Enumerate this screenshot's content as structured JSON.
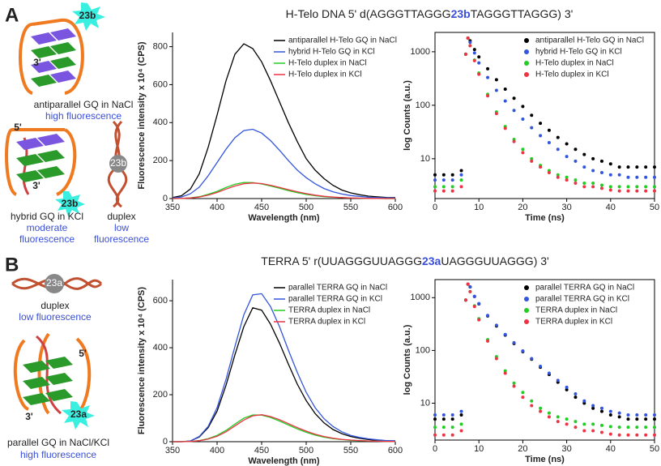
{
  "panels": [
    {
      "label": "A",
      "title": {
        "before": "H-Telo DNA 5' d(AGGGTTAGGG",
        "highlight": "23b",
        "after": "TAGGGTTAGGG) 3'"
      },
      "labels": [
        "23b",
        "3'",
        "antiparallel GQ in NaCl",
        "high fluorescence",
        "5'",
        "3'",
        "23b",
        "23b",
        "hybrid GQ in KCl",
        "moderate",
        "fluorescence",
        "duplex",
        "low",
        "fluorescence"
      ]
    },
    {
      "label": "B",
      "title": {
        "before": "TERRA 5' r(UUAGGGUUAGGG",
        "highlight": "23a",
        "after": "UAGGGUUAGGG) 3'"
      },
      "labels": [
        "23a",
        "duplex",
        "low fluorescence",
        "5'",
        "3'",
        "23a",
        "parallel GQ in NaCl/KCl",
        "high fluorescence"
      ]
    }
  ],
  "chart_data": [
    {
      "type": "line",
      "x_label": "Wavelength (nm)",
      "y_label": "Fluorescence intensity x 10⁴ (CPS)",
      "x": [
        350,
        360,
        370,
        380,
        390,
        400,
        410,
        420,
        430,
        440,
        450,
        460,
        470,
        480,
        490,
        500,
        510,
        520,
        530,
        540,
        550,
        560,
        570,
        580,
        590,
        600
      ],
      "xlim": [
        350,
        600
      ],
      "xticks": [
        350,
        400,
        450,
        500,
        550,
        600
      ],
      "ylim": [
        0,
        875
      ],
      "yticks": [
        0,
        200,
        400,
        600,
        800
      ],
      "legend": "upper right",
      "series": [
        {
          "name": "antiparallel H-Telo GQ in NaCl",
          "color": "#000000",
          "values": [
            5,
            15,
            50,
            130,
            270,
            440,
            620,
            760,
            815,
            790,
            720,
            620,
            510,
            400,
            300,
            210,
            150,
            105,
            70,
            45,
            30,
            20,
            13,
            9,
            6,
            5
          ]
        },
        {
          "name": "hybrid H-Telo GQ in KCl",
          "color": "#3355dd",
          "values": [
            3,
            8,
            25,
            60,
            120,
            190,
            260,
            320,
            358,
            365,
            345,
            305,
            255,
            200,
            150,
            110,
            78,
            53,
            36,
            24,
            16,
            11,
            7,
            5,
            4,
            3
          ]
        },
        {
          "name": "H-Telo duplex in NaCl",
          "color": "#22cc22",
          "values": [
            0,
            1,
            4,
            10,
            22,
            38,
            58,
            75,
            85,
            84,
            77,
            66,
            54,
            42,
            31,
            22,
            15,
            10,
            7,
            5,
            3,
            2,
            1,
            1,
            0,
            0
          ]
        },
        {
          "name": "H-Telo duplex in KCl",
          "color": "#ee3344",
          "values": [
            0,
            1,
            3,
            8,
            18,
            32,
            50,
            66,
            78,
            82,
            79,
            70,
            59,
            47,
            36,
            26,
            18,
            12,
            8,
            5,
            3,
            2,
            1,
            1,
            0,
            0
          ]
        }
      ]
    },
    {
      "type": "scatter",
      "log_y": true,
      "x_label": "Time (ns)",
      "y_label": "log Counts (a.u.)",
      "x": [
        0,
        2,
        4,
        6,
        7,
        7.5,
        8,
        9,
        10,
        12,
        14,
        16,
        18,
        20,
        22,
        24,
        26,
        28,
        30,
        32,
        34,
        36,
        38,
        40,
        42,
        44,
        46,
        48,
        50
      ],
      "xlim": [
        0,
        50
      ],
      "xticks": [
        0,
        10,
        20,
        30,
        40,
        50
      ],
      "ylim": [
        1.8,
        2300
      ],
      "yticks": [
        10,
        100,
        1000
      ],
      "legend": "upper right",
      "series": [
        {
          "name": "antiparallel H-Telo GQ in NaCl",
          "color": "#000000",
          "values": [
            5,
            5,
            5,
            6,
            900,
            1800,
            1600,
            1100,
            800,
            480,
            300,
            200,
            135,
            95,
            65,
            46,
            34,
            25,
            19,
            15,
            12,
            10,
            9,
            8,
            7,
            7,
            7,
            7,
            7
          ]
        },
        {
          "name": "hybrid H-Telo GQ in KCl",
          "color": "#3355dd",
          "values": [
            4,
            4,
            4,
            5,
            900,
            1800,
            1500,
            950,
            620,
            330,
            190,
            120,
            80,
            55,
            38,
            27,
            20,
            15,
            11,
            9,
            7,
            6,
            5.5,
            5,
            5,
            4.5,
            4.5,
            4.5,
            4.5
          ]
        },
        {
          "name": "H-Telo duplex in NaCl",
          "color": "#22cc22",
          "values": [
            3,
            3,
            3,
            4,
            900,
            1800,
            1300,
            700,
            400,
            160,
            75,
            40,
            23,
            15,
            10,
            7.5,
            6,
            5,
            4.5,
            4,
            3.5,
            3.5,
            3.2,
            3,
            3,
            3,
            3,
            3,
            3
          ]
        },
        {
          "name": "H-Telo duplex in KCl",
          "color": "#ee3344",
          "values": [
            2.5,
            2.5,
            2.5,
            3,
            900,
            1800,
            1300,
            680,
            380,
            150,
            70,
            37,
            21,
            13,
            9,
            7,
            5.5,
            4.5,
            4,
            3.5,
            3,
            3,
            2.8,
            2.6,
            2.5,
            2.5,
            2.5,
            2.5,
            2.5
          ]
        }
      ]
    },
    {
      "type": "line",
      "x_label": "Wavelength (nm)",
      "y_label": "Fluorescence intensity x 10⁴ (CPS)",
      "x": [
        350,
        360,
        370,
        380,
        390,
        400,
        410,
        420,
        430,
        440,
        450,
        460,
        470,
        480,
        490,
        500,
        510,
        520,
        530,
        540,
        550,
        560,
        570,
        580,
        590,
        600
      ],
      "xlim": [
        350,
        600
      ],
      "xticks": [
        350,
        400,
        450,
        500,
        550,
        600
      ],
      "ylim": [
        0,
        690
      ],
      "yticks": [
        0,
        200,
        400,
        600
      ],
      "legend": "upper right",
      "series": [
        {
          "name": "parallel TERRA GQ in NaCl",
          "color": "#000000",
          "values": [
            0,
            0,
            3,
            20,
            60,
            130,
            240,
            370,
            490,
            570,
            560,
            500,
            420,
            330,
            245,
            175,
            120,
            80,
            52,
            34,
            22,
            14,
            9,
            6,
            4,
            3
          ]
        },
        {
          "name": "parallel TERRA GQ in KCl",
          "color": "#3355dd",
          "values": [
            0,
            0,
            3,
            22,
            65,
            145,
            265,
            405,
            540,
            625,
            630,
            575,
            490,
            390,
            295,
            210,
            145,
            98,
            65,
            42,
            27,
            18,
            12,
            8,
            5,
            4
          ]
        },
        {
          "name": "TERRA duplex in NaCl",
          "color": "#22cc22",
          "values": [
            0,
            0,
            1,
            5,
            13,
            27,
            48,
            75,
            100,
            114,
            113,
            103,
            88,
            71,
            54,
            40,
            28,
            19,
            13,
            9,
            6,
            4,
            3,
            2,
            1,
            1
          ]
        },
        {
          "name": "TERRA duplex in KCl",
          "color": "#ee3344",
          "values": [
            0,
            0,
            1,
            4,
            11,
            23,
            42,
            67,
            92,
            110,
            115,
            107,
            94,
            77,
            60,
            45,
            32,
            22,
            15,
            10,
            7,
            5,
            3,
            2,
            1,
            1
          ]
        }
      ]
    },
    {
      "type": "scatter",
      "log_y": true,
      "x_label": "Time (ns)",
      "y_label": "log Counts (a.u.)",
      "x": [
        0,
        2,
        4,
        6,
        7,
        7.5,
        8,
        9,
        10,
        12,
        14,
        16,
        18,
        20,
        22,
        24,
        26,
        28,
        30,
        32,
        34,
        36,
        38,
        40,
        42,
        44,
        46,
        48,
        50
      ],
      "xlim": [
        0,
        50
      ],
      "xticks": [
        0,
        10,
        20,
        30,
        40,
        50
      ],
      "ylim": [
        2,
        2200
      ],
      "yticks": [
        10,
        100,
        1000
      ],
      "legend": "upper right",
      "series": [
        {
          "name": "parallel TERRA GQ in NaCl",
          "color": "#000000",
          "values": [
            5,
            5,
            5,
            6,
            900,
            1800,
            1600,
            1050,
            760,
            450,
            290,
            195,
            135,
            95,
            68,
            48,
            35,
            25,
            18,
            13,
            10,
            8,
            7,
            6,
            5.5,
            5,
            5,
            5,
            5
          ]
        },
        {
          "name": "parallel TERRA GQ in KCl",
          "color": "#3355dd",
          "values": [
            6,
            6,
            6,
            7,
            900,
            1800,
            1600,
            1060,
            770,
            460,
            300,
            200,
            140,
            98,
            70,
            50,
            37,
            27,
            20,
            15,
            11,
            9,
            8,
            7,
            6.5,
            6,
            6,
            6,
            6
          ]
        },
        {
          "name": "TERRA duplex in NaCl",
          "color": "#22cc22",
          "values": [
            3.5,
            3.5,
            3.5,
            4,
            900,
            1800,
            1300,
            700,
            400,
            160,
            76,
            41,
            24,
            16,
            11,
            8,
            6.5,
            5.5,
            5,
            4.5,
            4,
            4,
            3.8,
            3.6,
            3.5,
            3.5,
            3.5,
            3.5,
            3.5
          ]
        },
        {
          "name": "TERRA duplex in KCl",
          "color": "#ee3344",
          "values": [
            2.5,
            2.5,
            2.5,
            3,
            900,
            1800,
            1300,
            680,
            380,
            150,
            70,
            37,
            21,
            13,
            9,
            7,
            5.5,
            4.5,
            4,
            3.5,
            3,
            3,
            2.8,
            2.6,
            2.5,
            2.5,
            2.5,
            2.5,
            2.5
          ]
        }
      ]
    }
  ]
}
